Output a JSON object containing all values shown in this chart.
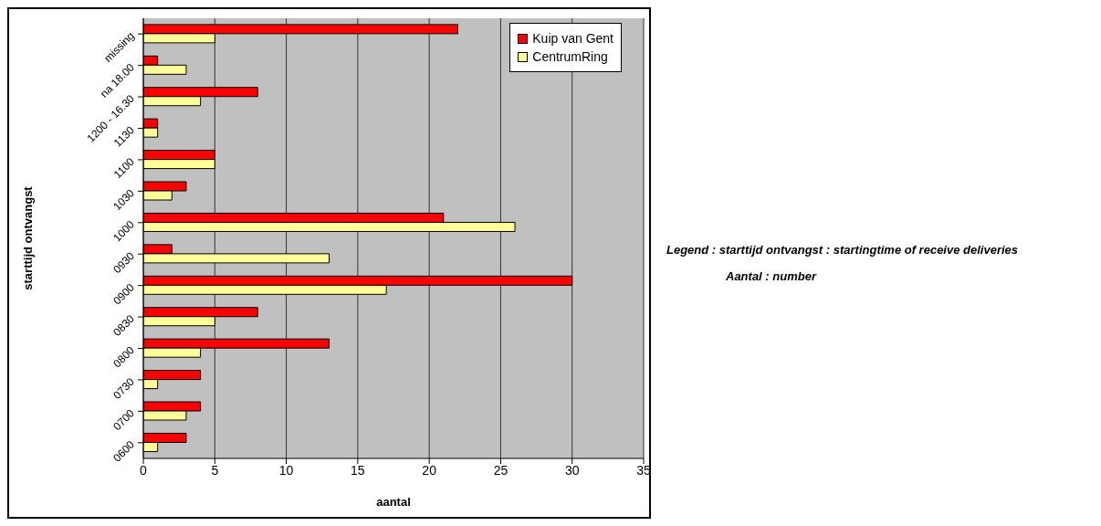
{
  "chart_data": {
    "type": "bar",
    "orientation": "horizontal",
    "xlabel": "aantal",
    "ylabel": "starttijd ontvangst",
    "categories": [
      "missing",
      "na 18.00",
      "1200 - 16.30",
      "1130",
      "1100",
      "1030",
      "1000",
      "0930",
      "0900",
      "0830",
      "0800",
      "0730",
      "0700",
      "0600"
    ],
    "series": [
      {
        "name": "Kuip van Gent",
        "color": "#ff0000",
        "values": [
          22,
          1,
          8,
          1,
          5,
          3,
          21,
          2,
          30,
          8,
          13,
          4,
          4,
          3
        ]
      },
      {
        "name": "CentrumRing",
        "color": "#ffff99",
        "values": [
          5,
          3,
          4,
          1,
          5,
          2,
          26,
          13,
          17,
          5,
          4,
          1,
          3,
          1
        ]
      }
    ],
    "xlim": [
      0,
      35
    ],
    "xticks": [
      0,
      5,
      10,
      15,
      20,
      25,
      30,
      35
    ],
    "grid": "x",
    "legend": "top right",
    "annotations": [
      "Legend : starttijd ontvangst : startingtime of receive deliveries",
      "Aantal : number"
    ]
  }
}
